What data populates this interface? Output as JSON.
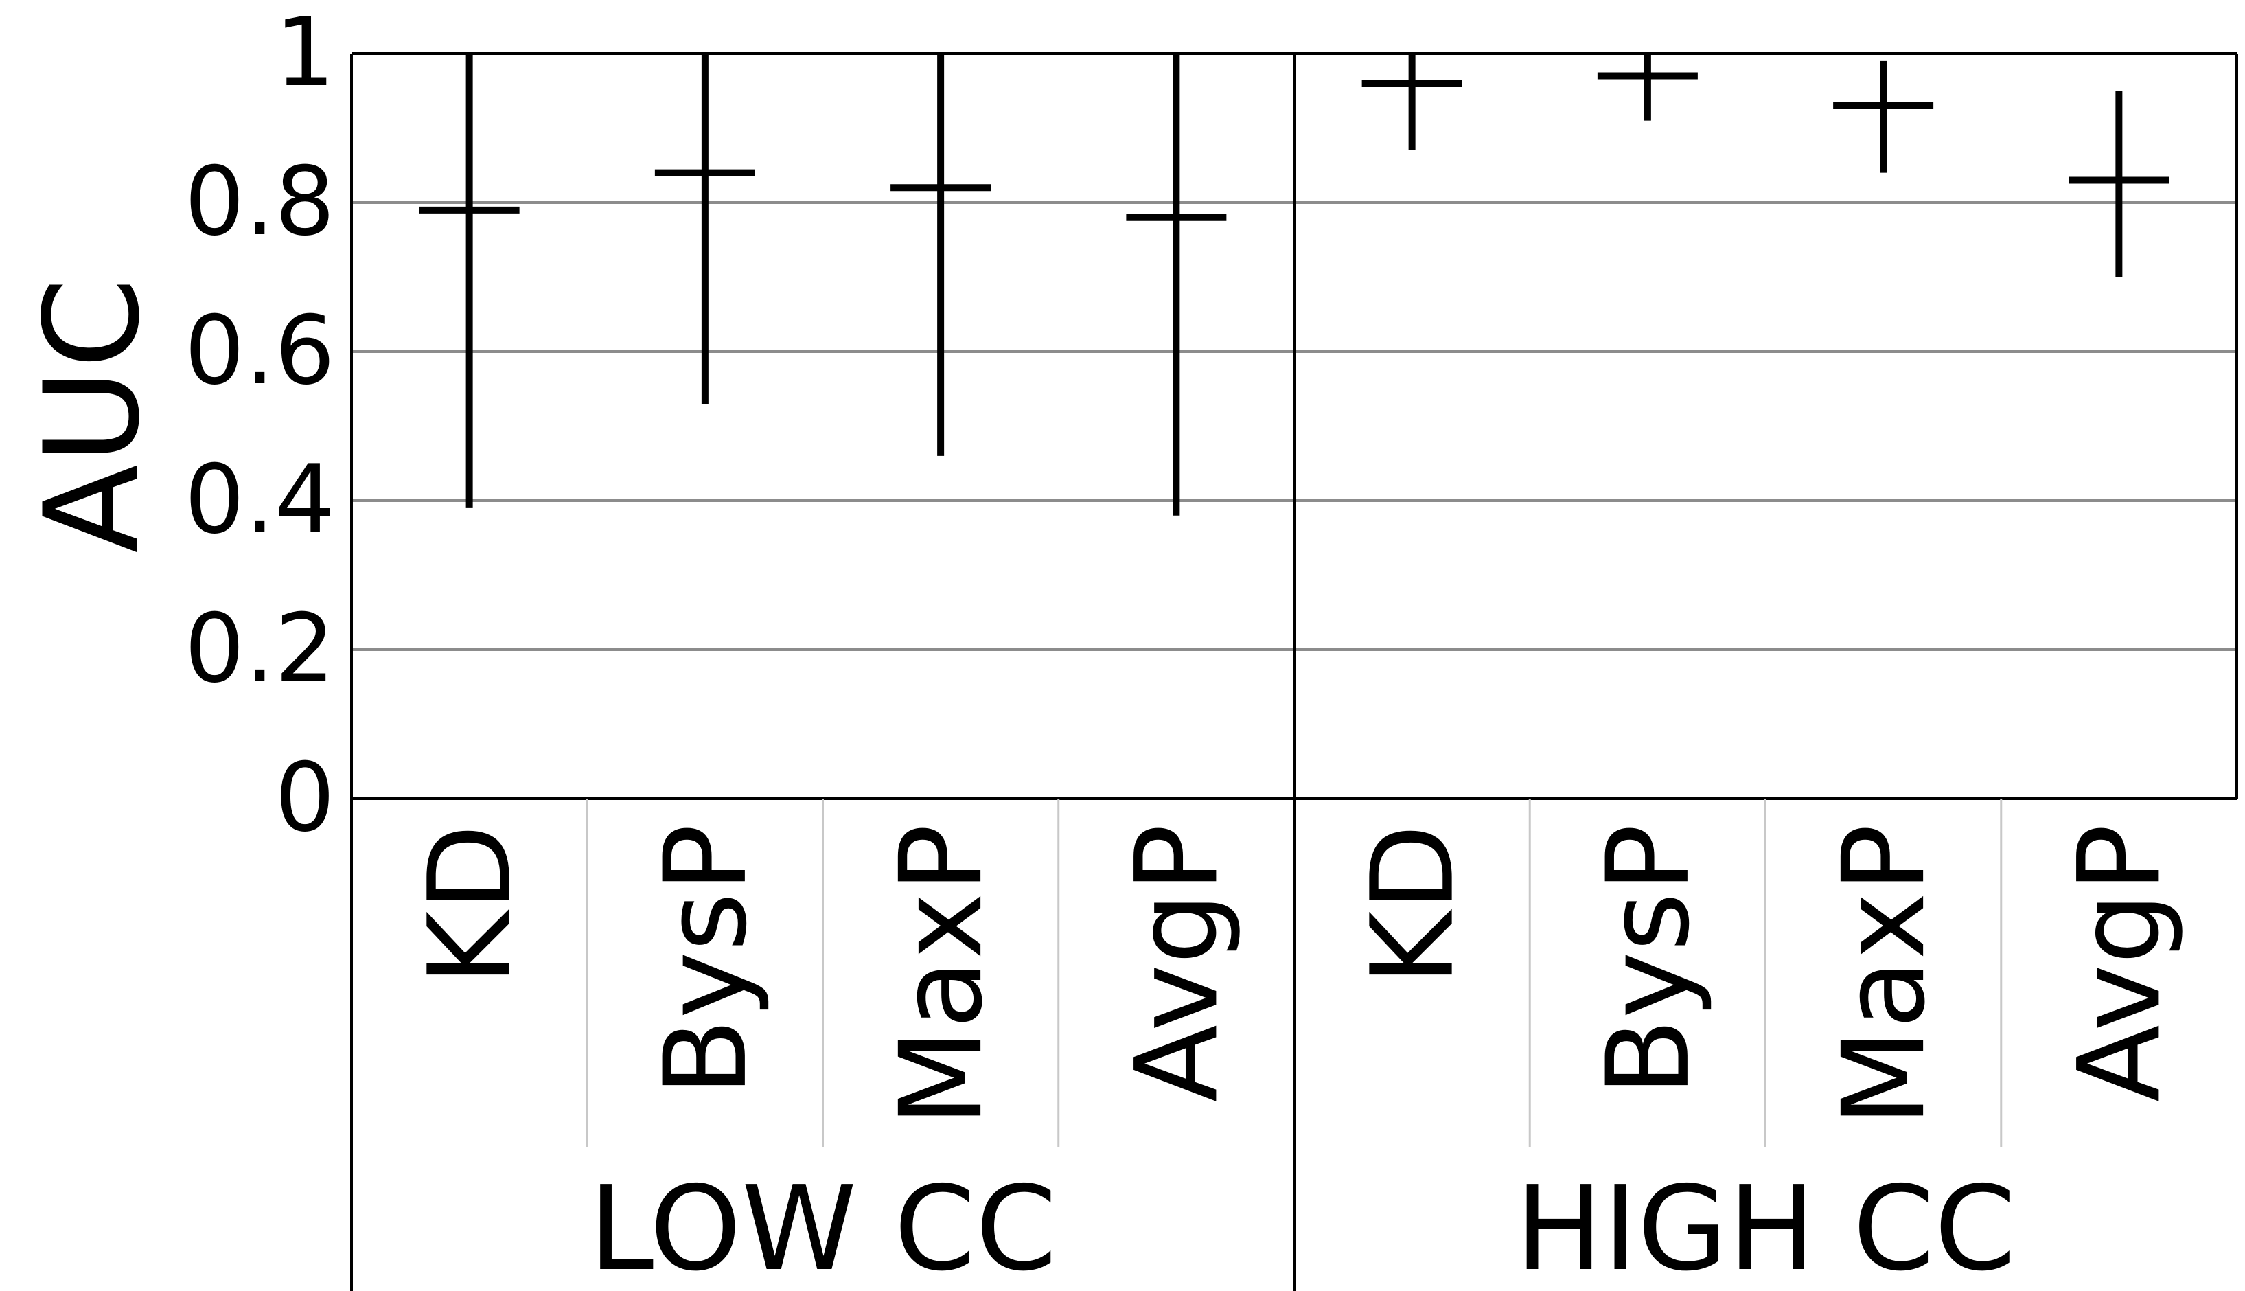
{
  "chart_data": {
    "type": "errorbar",
    "ylabel": "AUC",
    "ylim": [
      0,
      1
    ],
    "yticks": [
      "0",
      "0.2",
      "0.4",
      "0.6",
      "0.8",
      "1"
    ],
    "grid": true,
    "groups": [
      {
        "label": "LOW CC",
        "items": [
          {
            "category": "KD",
            "mean": 0.79,
            "low": 0.39,
            "high": 1.0
          },
          {
            "category": "BysP",
            "mean": 0.84,
            "low": 0.53,
            "high": 1.0
          },
          {
            "category": "MaxP",
            "mean": 0.82,
            "low": 0.46,
            "high": 1.0
          },
          {
            "category": "AvgP",
            "mean": 0.78,
            "low": 0.38,
            "high": 1.0
          }
        ]
      },
      {
        "label": "HIGH CC",
        "items": [
          {
            "category": "KD",
            "mean": 0.96,
            "low": 0.87,
            "high": 1.0
          },
          {
            "category": "BysP",
            "mean": 0.97,
            "low": 0.91,
            "high": 1.0
          },
          {
            "category": "MaxP",
            "mean": 0.93,
            "low": 0.84,
            "high": 0.99
          },
          {
            "category": "AvgP",
            "mean": 0.83,
            "low": 0.7,
            "high": 0.95
          }
        ]
      }
    ],
    "colors": {
      "marks": "#000000",
      "grid": "#8c8c8c",
      "separator": "#c8c8c8"
    }
  }
}
